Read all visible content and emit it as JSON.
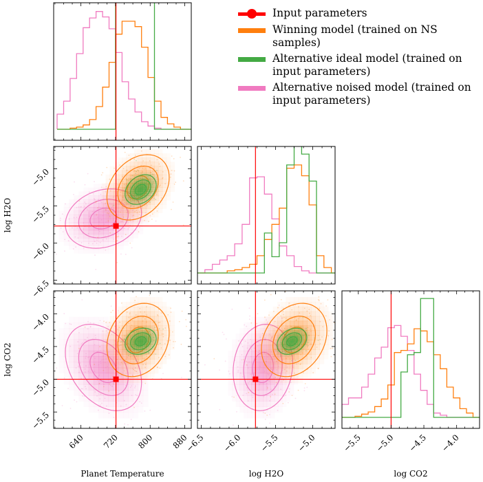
{
  "figure": {
    "type": "corner_plot"
  },
  "colors": {
    "input": "#ff0000",
    "winning": "#ff7f0e",
    "ideal": "#44aa44",
    "noised": "#f07ac0",
    "frame": "#000000"
  },
  "legend": {
    "items": [
      {
        "label": "Input parameters",
        "key": "input",
        "kind": "marker"
      },
      {
        "label": "Winning model (trained on NS samples)",
        "key": "winning",
        "kind": "bar"
      },
      {
        "label": "Alternative ideal model (trained on input parameters)",
        "key": "ideal",
        "kind": "bar"
      },
      {
        "label": "Alternative noised model (trained on input parameters)",
        "key": "noised",
        "kind": "bar"
      }
    ]
  },
  "chart_data": {
    "type": "corner",
    "parameters": [
      {
        "name": "Planet Temperature",
        "range": [
          577,
          895
        ],
        "ticks": [
          640,
          720,
          800,
          880
        ],
        "tick_labels": [
          "640",
          "720",
          "800",
          "880"
        ]
      },
      {
        "name": "log H2O",
        "range": [
          -6.55,
          -4.7
        ],
        "ticks": [
          -6.5,
          -6.0,
          -5.5,
          -5.0
        ],
        "tick_labels": [
          "−6.5",
          "−6.0",
          "−5.5",
          "−5.0"
        ]
      },
      {
        "name": "log CO2",
        "range": [
          -5.75,
          -3.65
        ],
        "ticks": [
          -5.5,
          -5.0,
          -4.5,
          -4.0
        ],
        "tick_labels": [
          "−5.5",
          "−5.0",
          "−4.5",
          "−4.0"
        ]
      }
    ],
    "truth": {
      "Planet Temperature": 721,
      "log H2O": -5.77,
      "log CO2": -5.0
    },
    "series": [
      {
        "name": "Winning model (trained on NS samples)",
        "key": "winning",
        "mean": [
          772,
          -5.25,
          -4.4
        ],
        "sd": [
          36,
          0.22,
          0.28
        ],
        "corr": [
          0.3,
          0.2,
          0.25
        ]
      },
      {
        "name": "Alternative ideal model (trained on input parameters)",
        "key": "ideal",
        "mean": [
          778,
          -5.28,
          -4.42
        ],
        "sd": [
          18,
          0.1,
          0.1
        ],
        "corr": [
          0.3,
          0.2,
          0.3
        ]
      },
      {
        "name": "Alternative noised model (trained on input parameters)",
        "key": "noised",
        "mean": [
          692,
          -5.67,
          -4.82
        ],
        "sd": [
          44,
          0.2,
          0.33
        ],
        "corr": [
          0.2,
          -0.35,
          0.1
        ]
      }
    ],
    "histograms": {
      "Planet Temperature": {
        "edges": [
          585,
          600,
          615,
          630,
          645,
          660,
          675,
          690,
          705,
          720,
          735,
          750,
          765,
          780,
          795,
          810,
          825,
          840,
          855,
          870,
          885,
          895
        ],
        "winning": [
          0,
          0,
          0.01,
          0.02,
          0.04,
          0.09,
          0.21,
          0.39,
          0.62,
          0.88,
          1.0,
          1.0,
          0.95,
          0.76,
          0.48,
          0.26,
          0.11,
          0.05,
          0.02,
          0,
          0
        ],
        "ideal": [
          0,
          0,
          0,
          0,
          0,
          0,
          0,
          0,
          0,
          2.4,
          2.4,
          4.5,
          5.3,
          5.2,
          4.2,
          0,
          0,
          0,
          0,
          0,
          0
        ],
        "noised": [
          0.14,
          0.26,
          0.47,
          0.7,
          0.94,
          1.03,
          1.09,
          1.04,
          0.93,
          0.71,
          0.44,
          0.28,
          0.16,
          0.07,
          0.03,
          0.01,
          0,
          0,
          0,
          0,
          0
        ]
      },
      "log H2O": {
        "edges": [
          -6.55,
          -6.45,
          -6.35,
          -6.25,
          -6.15,
          -6.05,
          -5.95,
          -5.85,
          -5.75,
          -5.65,
          -5.55,
          -5.45,
          -5.35,
          -5.25,
          -5.15,
          -5.05,
          -4.95,
          -4.85,
          -4.75,
          -4.7
        ],
        "winning": [
          0,
          0,
          0,
          0,
          0.02,
          0.03,
          0.05,
          0.08,
          0.16,
          0.31,
          0.45,
          0.6,
          0.97,
          1.0,
          0.9,
          0.63,
          0.16,
          0.05,
          0
        ],
        "ideal": [
          0,
          0,
          0,
          0,
          0,
          0,
          0,
          0,
          0,
          0.37,
          0.15,
          0.28,
          1.0,
          1.24,
          1.1,
          0.85,
          0,
          0,
          0
        ],
        "noised": [
          0,
          0.03,
          0.08,
          0.12,
          0.16,
          0.27,
          0.45,
          0.88,
          0.89,
          0.73,
          0.5,
          0.25,
          0.16,
          0.06,
          0.02,
          0,
          0,
          0,
          0
        ]
      },
      "log CO2": {
        "edges": [
          -5.75,
          -5.65,
          -5.55,
          -5.45,
          -5.35,
          -5.25,
          -5.15,
          -5.05,
          -4.95,
          -4.85,
          -4.75,
          -4.65,
          -4.55,
          -4.45,
          -4.35,
          -4.25,
          -4.15,
          -4.05,
          -3.95,
          -3.85,
          -3.75,
          -3.65
        ],
        "winning": [
          0,
          0,
          0.01,
          0.03,
          0.05,
          0.1,
          0.17,
          0.3,
          0.6,
          0.62,
          0.68,
          0.82,
          0.8,
          0.7,
          0.58,
          0.45,
          0.28,
          0.18,
          0.08,
          0.04,
          0
        ],
        "ideal": [
          0,
          0,
          0,
          0,
          0,
          0,
          0,
          0,
          0,
          0.42,
          0.58,
          0.6,
          1.1,
          1.1,
          0,
          0,
          0,
          0,
          0,
          0,
          0
        ],
        "noised": [
          0.12,
          0.18,
          0.18,
          0.28,
          0.4,
          0.55,
          0.65,
          0.83,
          0.85,
          0.75,
          0.62,
          0.4,
          0.25,
          0.12,
          0.04,
          0.02,
          0,
          0,
          0,
          0,
          0
        ]
      }
    }
  }
}
